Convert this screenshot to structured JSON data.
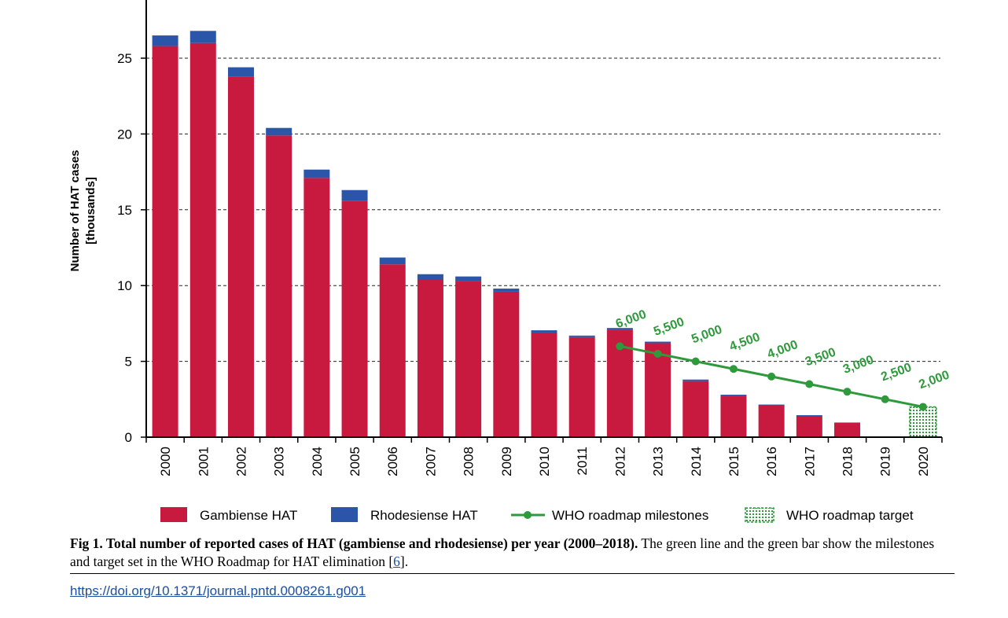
{
  "chart_data": {
    "type": "bar",
    "stacked": true,
    "ylabel_line1": "Number of HAT cases",
    "ylabel_line2": "[thousands]",
    "ylim": [
      0,
      28
    ],
    "yticks": [
      0,
      5,
      10,
      15,
      20,
      25
    ],
    "grid": "horizontal-dashed",
    "categories": [
      "2000",
      "2001",
      "2002",
      "2003",
      "2004",
      "2005",
      "2006",
      "2007",
      "2008",
      "2009",
      "2010",
      "2011",
      "2012",
      "2013",
      "2014",
      "2015",
      "2016",
      "2017",
      "2018",
      "2019",
      "2020"
    ],
    "series": [
      {
        "name": "Gambiense HAT",
        "color": "#c8193f",
        "values": [
          25.8,
          26.0,
          23.8,
          19.9,
          17.1,
          15.6,
          11.4,
          10.4,
          10.3,
          9.6,
          6.9,
          6.6,
          7.1,
          6.2,
          3.7,
          2.7,
          2.1,
          1.4,
          0.95,
          null,
          null
        ]
      },
      {
        "name": "Rhodesiense HAT",
        "color": "#2b55a8",
        "values": [
          0.7,
          0.8,
          0.6,
          0.5,
          0.55,
          0.7,
          0.45,
          0.35,
          0.3,
          0.2,
          0.15,
          0.1,
          0.1,
          0.1,
          0.1,
          0.1,
          0.05,
          0.05,
          0.02,
          null,
          null
        ]
      }
    ],
    "milestones": {
      "name": "WHO roadmap milestones",
      "color": "#2e9a3b",
      "x": [
        "2012",
        "2013",
        "2014",
        "2015",
        "2016",
        "2017",
        "2018",
        "2019",
        "2020"
      ],
      "y": [
        6.0,
        5.5,
        5.0,
        4.5,
        4.0,
        3.5,
        3.0,
        2.5,
        2.0
      ],
      "labels": [
        "6,000",
        "5,500",
        "5,000",
        "4,500",
        "4,000",
        "3,500",
        "3,000",
        "2,500",
        "2,000"
      ]
    },
    "target": {
      "name": "WHO roadmap target",
      "x": "2020",
      "value": 2.0,
      "color": "#2e9a3b"
    },
    "legend": {
      "placement": "bottom"
    }
  },
  "caption": {
    "label": "Fig 1.",
    "title": "Total number of reported cases of HAT (gambiense and rhodesiense) per year (2000–2018).",
    "body": "The green line and the green bar show the milestones and target set in the WHO Roadmap for HAT elimination ",
    "ref_open": "[",
    "ref": "6",
    "ref_close": "]."
  },
  "doi": "https://doi.org/10.1371/journal.pntd.0008261.g001"
}
